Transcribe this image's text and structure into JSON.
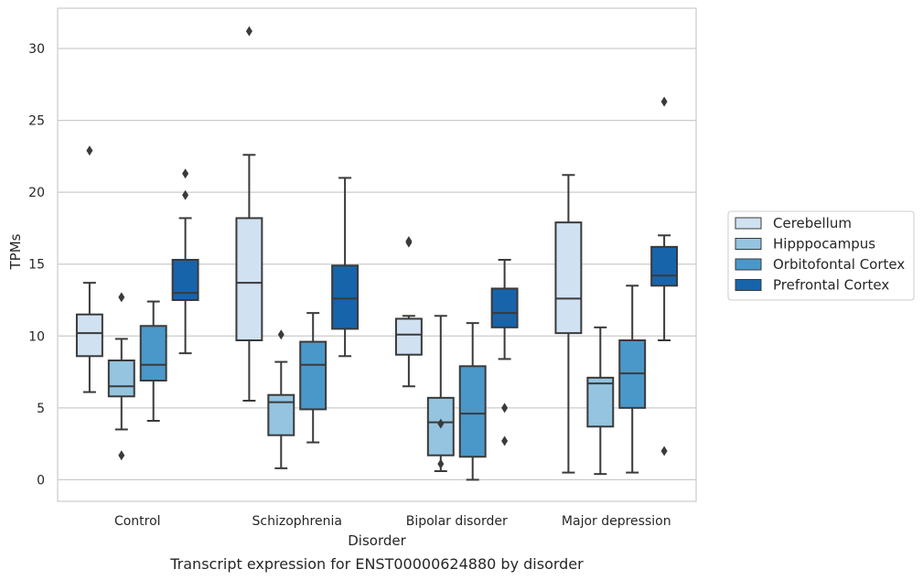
{
  "chart_data": {
    "type": "box",
    "title": "",
    "caption": "Transcript expression for ENST00000624880 by disorder",
    "xlabel": "Disorder",
    "ylabel": "TPMs",
    "ylim": [
      -1.5,
      32.8
    ],
    "yticks": [
      0,
      5,
      10,
      15,
      20,
      25,
      30
    ],
    "grid": true,
    "legend_position": "right",
    "categories": [
      "Control",
      "Schizophrenia",
      "Bipolar disorder",
      "Major depression"
    ],
    "series": [
      {
        "name": "Cerebellum",
        "color": "#d0e1f2",
        "boxes": [
          {
            "whislo": 6.1,
            "q1": 8.6,
            "med": 10.2,
            "q3": 11.5,
            "whishi": 13.7,
            "fliers": [
              22.9
            ]
          },
          {
            "whislo": 5.5,
            "q1": 9.7,
            "med": 13.7,
            "q3": 18.2,
            "whishi": 22.6,
            "fliers": [
              31.2
            ]
          },
          {
            "whislo": 6.5,
            "q1": 8.7,
            "med": 10.1,
            "q3": 11.2,
            "whishi": 11.4,
            "fliers": [
              16.5,
              16.6
            ]
          },
          {
            "whislo": 0.5,
            "q1": 10.2,
            "med": 12.6,
            "q3": 17.9,
            "whishi": 21.2,
            "fliers": []
          }
        ]
      },
      {
        "name": "Hipppocampus",
        "color": "#94c4df",
        "boxes": [
          {
            "whislo": 3.5,
            "q1": 5.8,
            "med": 6.5,
            "q3": 8.3,
            "whishi": 9.8,
            "fliers": [
              12.7,
              1.7
            ]
          },
          {
            "whislo": 0.8,
            "q1": 3.1,
            "med": 5.4,
            "q3": 5.9,
            "whishi": 8.2,
            "fliers": [
              10.1
            ]
          },
          {
            "whislo": 0.6,
            "q1": 1.7,
            "med": 4.0,
            "q3": 5.7,
            "whishi": 11.4,
            "fliers": [
              3.9,
              1.1
            ]
          },
          {
            "whislo": 0.4,
            "q1": 3.7,
            "med": 6.7,
            "q3": 7.1,
            "whishi": 10.6,
            "fliers": []
          }
        ]
      },
      {
        "name": "Orbitofontal Cortex",
        "color": "#4a98c9",
        "boxes": [
          {
            "whislo": 4.1,
            "q1": 6.9,
            "med": 8.0,
            "q3": 10.7,
            "whishi": 12.4,
            "fliers": []
          },
          {
            "whislo": 2.6,
            "q1": 4.9,
            "med": 8.0,
            "q3": 9.6,
            "whishi": 11.6,
            "fliers": []
          },
          {
            "whislo": 0.0,
            "q1": 1.6,
            "med": 4.6,
            "q3": 7.9,
            "whishi": 10.9,
            "fliers": []
          },
          {
            "whislo": 0.5,
            "q1": 5.0,
            "med": 7.4,
            "q3": 9.7,
            "whishi": 13.5,
            "fliers": []
          }
        ]
      },
      {
        "name": "Prefrontal Cortex",
        "color": "#1764ab",
        "boxes": [
          {
            "whislo": 8.8,
            "q1": 12.5,
            "med": 13.0,
            "q3": 15.3,
            "whishi": 18.2,
            "fliers": [
              21.3,
              19.8
            ]
          },
          {
            "whislo": 8.6,
            "q1": 10.5,
            "med": 12.6,
            "q3": 14.9,
            "whishi": 21.0,
            "fliers": []
          },
          {
            "whislo": 8.4,
            "q1": 10.6,
            "med": 11.6,
            "q3": 13.3,
            "whishi": 15.3,
            "fliers": [
              5.0,
              2.7
            ]
          },
          {
            "whislo": 9.7,
            "q1": 13.5,
            "med": 14.2,
            "q3": 16.2,
            "whishi": 17.0,
            "fliers": [
              26.3,
              2.0
            ]
          }
        ]
      }
    ]
  }
}
